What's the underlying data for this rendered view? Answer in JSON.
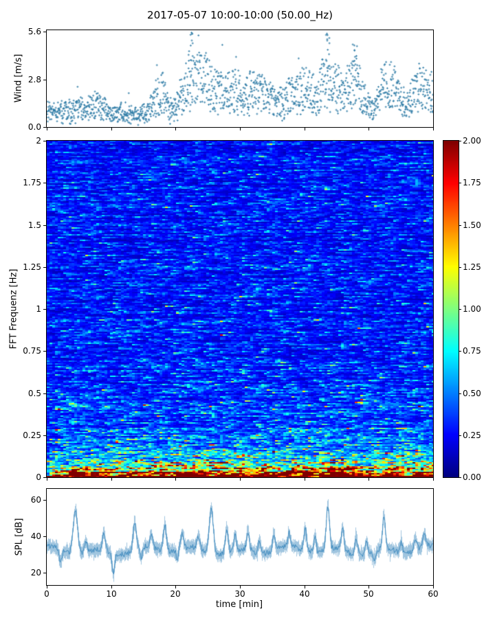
{
  "title": "2017-05-07 10:00-10:00 (50.00_Hz)",
  "chart_data": [
    {
      "type": "scatter",
      "ylabel": "Wind [m/s]",
      "xlim": [
        0,
        60
      ],
      "ylim": [
        0,
        5.7
      ],
      "yticks": [
        0.0,
        2.8,
        5.6
      ],
      "ytick_labels": [
        "0.0",
        "2.8",
        "5.6"
      ],
      "marker_color": "#2e7ba6",
      "n_points": 1600,
      "trend_per_min": [
        1.0,
        0.9,
        1.0,
        1.1,
        1.0,
        1.3,
        1.1,
        1.4,
        1.6,
        1.2,
        0.9,
        0.8,
        0.9,
        1.0,
        0.8,
        0.9,
        1.1,
        2.0,
        2.3,
        1.2,
        1.4,
        2.2,
        3.2,
        3.0,
        3.4,
        3.0,
        2.5,
        2.4,
        2.3,
        2.5,
        2.3,
        2.2,
        2.5,
        2.3,
        2.1,
        1.7,
        1.5,
        1.7,
        2.1,
        2.3,
        2.4,
        2.3,
        2.2,
        2.9,
        3.1,
        2.6,
        2.4,
        2.8,
        2.9,
        2.3,
        1.3,
        1.2,
        2.5,
        2.9,
        2.6,
        1.6,
        1.5,
        2.2,
        2.6,
        2.4,
        2.5
      ],
      "spike_times": [
        22.3,
        43.7,
        47.8
      ],
      "spike_values": [
        5.6,
        5.5,
        4.9
      ]
    },
    {
      "type": "heatmap",
      "ylabel": "FFT Frequenz [Hz]",
      "xlim": [
        0,
        60
      ],
      "ylim": [
        0,
        2
      ],
      "yticks": [
        0,
        0.25,
        0.5,
        0.75,
        1,
        1.25,
        1.5,
        1.75,
        2
      ],
      "ytick_labels": [
        "0",
        "0.25",
        "0.5",
        "0.75",
        "1",
        "1.25",
        "1.5",
        "1.75",
        "2"
      ],
      "colormap": "jet",
      "value_range": [
        0,
        2
      ],
      "base_offset": 0.3,
      "decay_amp": 2.2,
      "decay_scale": 0.04,
      "mid_amp": 0.45,
      "mid_scale": 0.22,
      "colorbar_ticks": [
        "0.00",
        "0.25",
        "0.50",
        "0.75",
        "1.00",
        "1.25",
        "1.50",
        "1.75",
        "2.00"
      ]
    },
    {
      "type": "line",
      "ylabel": "SPL [dB]",
      "xlabel": "time [min]",
      "xlim": [
        0,
        60
      ],
      "ylim": [
        13,
        66
      ],
      "yticks": [
        20,
        40,
        60
      ],
      "xticks": [
        0,
        10,
        20,
        30,
        40,
        50,
        60
      ],
      "baseline": 32,
      "line_color": "#2d7fb8",
      "peaks": [
        {
          "t": 4.4,
          "v": 24,
          "w": 0.5
        },
        {
          "t": 6.0,
          "v": 6,
          "w": 0.3
        },
        {
          "t": 8.8,
          "v": 10,
          "w": 0.3
        },
        {
          "t": 13.6,
          "v": 15,
          "w": 0.35
        },
        {
          "t": 16.2,
          "v": 7,
          "w": 0.3
        },
        {
          "t": 18.3,
          "v": 14,
          "w": 0.35
        },
        {
          "t": 21.0,
          "v": 9,
          "w": 0.3
        },
        {
          "t": 23.5,
          "v": 7,
          "w": 0.3
        },
        {
          "t": 25.5,
          "v": 25,
          "w": 0.45
        },
        {
          "t": 27.9,
          "v": 14,
          "w": 0.3
        },
        {
          "t": 29.2,
          "v": 9,
          "w": 0.25
        },
        {
          "t": 31.2,
          "v": 11,
          "w": 0.3
        },
        {
          "t": 33.0,
          "v": 7,
          "w": 0.25
        },
        {
          "t": 35.2,
          "v": 9,
          "w": 0.3
        },
        {
          "t": 37.6,
          "v": 7,
          "w": 0.25
        },
        {
          "t": 40.1,
          "v": 12,
          "w": 0.3
        },
        {
          "t": 41.6,
          "v": 9,
          "w": 0.25
        },
        {
          "t": 43.6,
          "v": 24,
          "w": 0.35
        },
        {
          "t": 45.9,
          "v": 12,
          "w": 0.3
        },
        {
          "t": 48.0,
          "v": 9,
          "w": 0.3
        },
        {
          "t": 49.6,
          "v": 7,
          "w": 0.25
        },
        {
          "t": 52.3,
          "v": 18,
          "w": 0.3
        },
        {
          "t": 55.0,
          "v": 5,
          "w": 0.25
        },
        {
          "t": 57.2,
          "v": 7,
          "w": 0.3
        },
        {
          "t": 58.6,
          "v": 7,
          "w": 0.3
        }
      ],
      "dips": [
        {
          "t": 2.1,
          "v": -7,
          "w": 0.3
        },
        {
          "t": 10.3,
          "v": -12,
          "w": 0.25
        },
        {
          "t": 14.6,
          "v": -6,
          "w": 0.25
        },
        {
          "t": 20.2,
          "v": -5,
          "w": 0.2
        },
        {
          "t": 50.8,
          "v": -5,
          "w": 0.3
        }
      ]
    }
  ]
}
